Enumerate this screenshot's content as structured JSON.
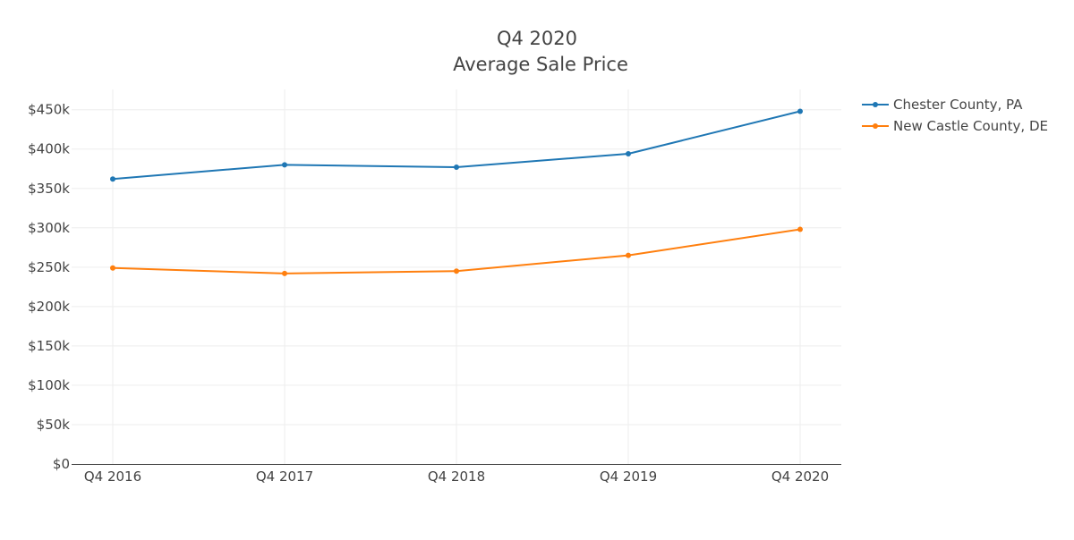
{
  "chart_data": {
    "type": "line",
    "title": "Q4 2020",
    "subtitle": "Average Sale Price",
    "xlabel": "",
    "ylabel": "",
    "categories": [
      "Q4 2016",
      "Q4 2017",
      "Q4 2018",
      "Q4 2019",
      "Q4 2020"
    ],
    "ylim": [
      0,
      475000
    ],
    "yticks": [
      0,
      50000,
      100000,
      150000,
      200000,
      250000,
      300000,
      350000,
      400000,
      450000
    ],
    "ytick_labels": [
      "$0",
      "$50k",
      "$100k",
      "$150k",
      "$200k",
      "$250k",
      "$300k",
      "$350k",
      "$400k",
      "$450k"
    ],
    "grid": true,
    "legend_position": "top-right",
    "series": [
      {
        "name": "Chester County, PA",
        "color": "#1f77b4",
        "values": [
          362000,
          380000,
          377000,
          394000,
          448000
        ]
      },
      {
        "name": "New Castle County, DE",
        "color": "#ff7f0e",
        "values": [
          249000,
          242000,
          245000,
          265000,
          298000
        ]
      }
    ]
  }
}
